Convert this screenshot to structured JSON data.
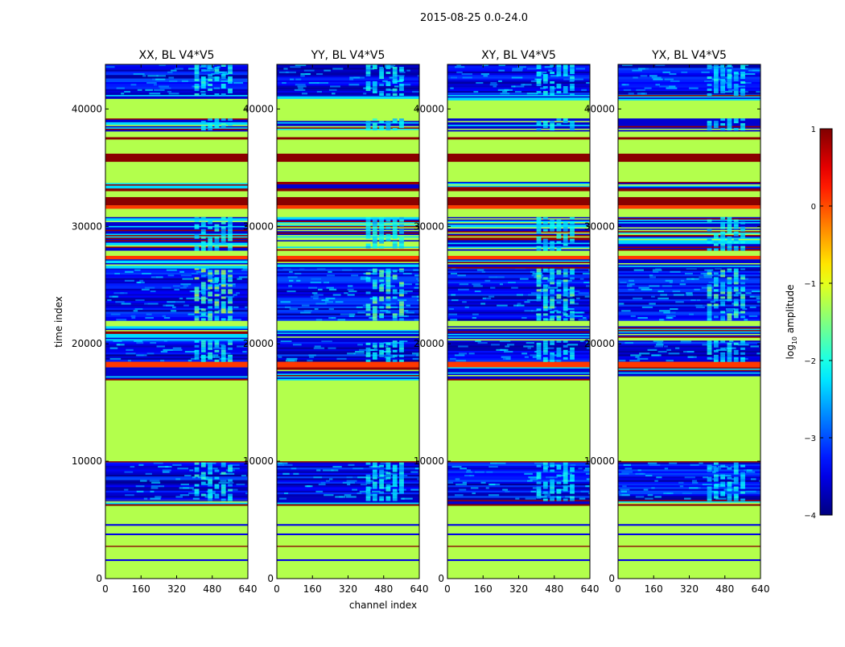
{
  "figure_title": "2015-08-25 0.0-24.0",
  "chart_data": {
    "type": "heatmap",
    "title": "2015-08-25 0.0-24.0",
    "xlabel": "channel index",
    "ylabel": "time index",
    "xlim": [
      0,
      640
    ],
    "ylim": [
      0,
      43800
    ],
    "x_ticks": [
      0,
      160,
      320,
      480,
      640
    ],
    "y_ticks": [
      0,
      10000,
      20000,
      30000,
      40000
    ],
    "colorbar": {
      "label_main": "log",
      "label_sub": "10",
      "label_rest": " amplitude",
      "range": [
        -4,
        1
      ],
      "ticks": [
        1,
        0,
        -1,
        -2,
        -3,
        -4
      ],
      "colormap": "jet"
    },
    "panels": [
      {
        "title": "XX, BL V4*V5",
        "rfi_strength": 1.0
      },
      {
        "title": "YY, BL V4*V5",
        "rfi_strength": 0.85
      },
      {
        "title": "XY, BL V4*V5",
        "rfi_strength": 0.8
      },
      {
        "title": "YX, BL V4*V5",
        "rfi_strength": 0.8
      }
    ],
    "flagged_value": -1.25,
    "noise_floor_range": [
      -3.9,
      -3.0
    ],
    "rfi_channel_range": [
      400,
      580
    ],
    "bands": [
      {
        "from": 0,
        "to": 1500,
        "kind": "flag"
      },
      {
        "from": 1500,
        "to": 1650,
        "kind": "line"
      },
      {
        "from": 1650,
        "to": 2700,
        "kind": "flag"
      },
      {
        "from": 2700,
        "to": 2800,
        "kind": "dark"
      },
      {
        "from": 2800,
        "to": 3700,
        "kind": "flag"
      },
      {
        "from": 3700,
        "to": 3850,
        "kind": "line"
      },
      {
        "from": 3850,
        "to": 4500,
        "kind": "flag"
      },
      {
        "from": 4500,
        "to": 4650,
        "kind": "line"
      },
      {
        "from": 4650,
        "to": 6200,
        "kind": "flag"
      },
      {
        "from": 6200,
        "to": 6450,
        "kind": "dark"
      },
      {
        "from": 6450,
        "to": 6800,
        "kind": "stripe"
      },
      {
        "from": 6800,
        "to": 9900,
        "kind": "noise",
        "rfi": true
      },
      {
        "from": 9900,
        "to": 10000,
        "kind": "dark"
      },
      {
        "from": 10000,
        "to": 17000,
        "kind": "flag"
      },
      {
        "from": 17000,
        "to": 18000,
        "kind": "stripe"
      },
      {
        "from": 18000,
        "to": 18500,
        "kind": "orange"
      },
      {
        "from": 18500,
        "to": 20300,
        "kind": "noise",
        "rfi": true
      },
      {
        "from": 20300,
        "to": 21500,
        "kind": "stripe"
      },
      {
        "from": 21500,
        "to": 22000,
        "kind": "flag"
      },
      {
        "from": 22000,
        "to": 26500,
        "kind": "noise",
        "rfi": true,
        "strong": true
      },
      {
        "from": 26500,
        "to": 27200,
        "kind": "stripe"
      },
      {
        "from": 27200,
        "to": 27500,
        "kind": "orange"
      },
      {
        "from": 27500,
        "to": 28000,
        "kind": "flag"
      },
      {
        "from": 28000,
        "to": 30800,
        "kind": "stripe",
        "rfi": true
      },
      {
        "from": 30800,
        "to": 31500,
        "kind": "flag"
      },
      {
        "from": 31500,
        "to": 31800,
        "kind": "orange"
      },
      {
        "from": 31800,
        "to": 32500,
        "kind": "dark"
      },
      {
        "from": 32500,
        "to": 33000,
        "kind": "flag"
      },
      {
        "from": 33000,
        "to": 33300,
        "kind": "dark"
      },
      {
        "from": 33300,
        "to": 33800,
        "kind": "stripe"
      },
      {
        "from": 33800,
        "to": 35500,
        "kind": "flag"
      },
      {
        "from": 35500,
        "to": 36200,
        "kind": "dark"
      },
      {
        "from": 36200,
        "to": 37400,
        "kind": "flag"
      },
      {
        "from": 37400,
        "to": 37600,
        "kind": "dark"
      },
      {
        "from": 37600,
        "to": 38200,
        "kind": "flag"
      },
      {
        "from": 38200,
        "to": 39200,
        "kind": "stripe",
        "rfi": true
      },
      {
        "from": 39200,
        "to": 40800,
        "kind": "flag"
      },
      {
        "from": 40800,
        "to": 41300,
        "kind": "stripe"
      },
      {
        "from": 41300,
        "to": 43800,
        "kind": "noise",
        "rfi": true
      }
    ]
  }
}
